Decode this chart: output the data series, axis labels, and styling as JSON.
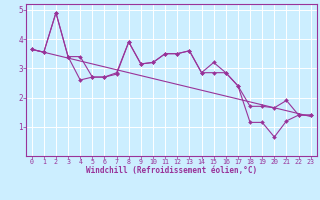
{
  "xlabel": "Windchill (Refroidissement éolien,°C)",
  "bg_color": "#cceeff",
  "grid_color": "#ffffff",
  "line_color": "#993399",
  "xlim": [
    -0.5,
    23.5
  ],
  "ylim": [
    0,
    5.2
  ],
  "xticks": [
    0,
    1,
    2,
    3,
    4,
    5,
    6,
    7,
    8,
    9,
    10,
    11,
    12,
    13,
    14,
    15,
    16,
    17,
    18,
    19,
    20,
    21,
    22,
    23
  ],
  "yticks": [
    1,
    2,
    3,
    4,
    5
  ],
  "curve1_x": [
    0,
    1,
    2,
    3,
    4,
    5,
    6,
    7,
    8,
    9,
    10,
    11,
    12,
    13,
    14,
    15,
    16,
    17,
    18,
    19,
    20,
    21,
    22,
    23
  ],
  "curve1_y": [
    3.65,
    3.55,
    4.9,
    3.4,
    2.6,
    2.7,
    2.7,
    2.8,
    3.9,
    3.15,
    3.2,
    3.5,
    3.5,
    3.6,
    2.85,
    3.2,
    2.85,
    2.4,
    1.15,
    1.15,
    0.65,
    1.2,
    1.4,
    1.4
  ],
  "curve2_x": [
    0,
    1,
    2,
    3,
    4,
    5,
    6,
    7,
    8,
    9,
    10,
    11,
    12,
    13,
    14,
    15,
    16,
    17,
    18,
    19,
    20,
    21,
    22,
    23
  ],
  "curve2_y": [
    3.65,
    3.55,
    4.9,
    3.4,
    3.4,
    2.7,
    2.7,
    2.85,
    3.9,
    3.15,
    3.2,
    3.5,
    3.5,
    3.6,
    2.85,
    2.85,
    2.85,
    2.4,
    1.7,
    1.7,
    1.65,
    1.9,
    1.4,
    1.4
  ],
  "trend_x": [
    0,
    23
  ],
  "trend_y": [
    3.65,
    1.35
  ]
}
